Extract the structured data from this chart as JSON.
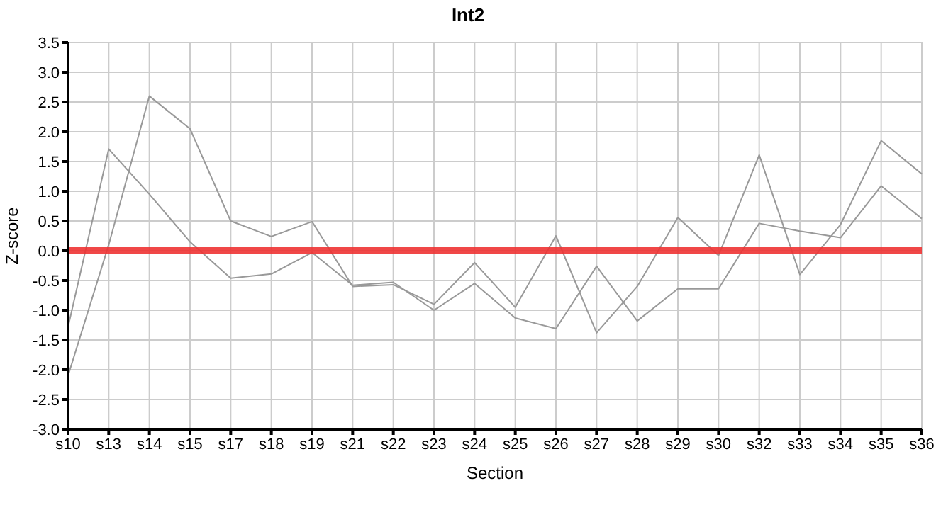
{
  "chart_data": {
    "type": "line",
    "title": "Int2",
    "xlabel": "Section",
    "ylabel": "Z-score",
    "categories": [
      "s10",
      "s13",
      "s14",
      "s15",
      "s17",
      "s18",
      "s19",
      "s21",
      "s22",
      "s23",
      "s24",
      "s25",
      "s26",
      "s27",
      "s28",
      "s29",
      "s30",
      "s32",
      "s33",
      "s34",
      "s35",
      "s36"
    ],
    "series": [
      {
        "color": "#999999",
        "values": [
          -2.1,
          0.1,
          2.6,
          2.05,
          0.5,
          0.24,
          0.49,
          -0.6,
          -0.57,
          -0.9,
          -0.2,
          -0.95,
          0.25,
          -1.38,
          -0.6,
          0.56,
          -0.08,
          1.61,
          -0.4,
          0.44,
          1.85,
          1.29
        ]
      },
      {
        "color": "#999999",
        "values": [
          -1.28,
          1.71,
          0.95,
          0.15,
          -0.46,
          -0.39,
          -0.03,
          -0.58,
          -0.53,
          -1.0,
          -0.55,
          -1.13,
          -1.31,
          -0.26,
          -1.18,
          -0.64,
          -0.64,
          0.46,
          0.33,
          0.22,
          1.09,
          0.54
        ]
      }
    ],
    "ylim": [
      -3,
      3.5
    ],
    "yticks": [
      {
        "value": -3,
        "label": "-3.0"
      },
      {
        "value": -2.5,
        "label": "-2.5"
      },
      {
        "value": -2,
        "label": "-2.0"
      },
      {
        "value": -1.5,
        "label": "-1.5"
      },
      {
        "value": -1,
        "label": "-1.0"
      },
      {
        "value": -0.5,
        "label": "-0.5"
      },
      {
        "value": 0,
        "label": "0.0"
      },
      {
        "value": 0.5,
        "label": "0.5"
      },
      {
        "value": 1,
        "label": "1.0"
      },
      {
        "value": 1.5,
        "label": "1.5"
      },
      {
        "value": 2,
        "label": "2.0"
      },
      {
        "value": 2.5,
        "label": "2.5"
      },
      {
        "value": 3,
        "label": "3.0"
      },
      {
        "value": 3.5,
        "label": "3.5"
      }
    ],
    "ref_lines": [
      {
        "axis": "y",
        "value": 0,
        "color": "#ee3333"
      }
    ],
    "grid": true,
    "legend": false,
    "marker": "none",
    "line_style": "solid"
  }
}
